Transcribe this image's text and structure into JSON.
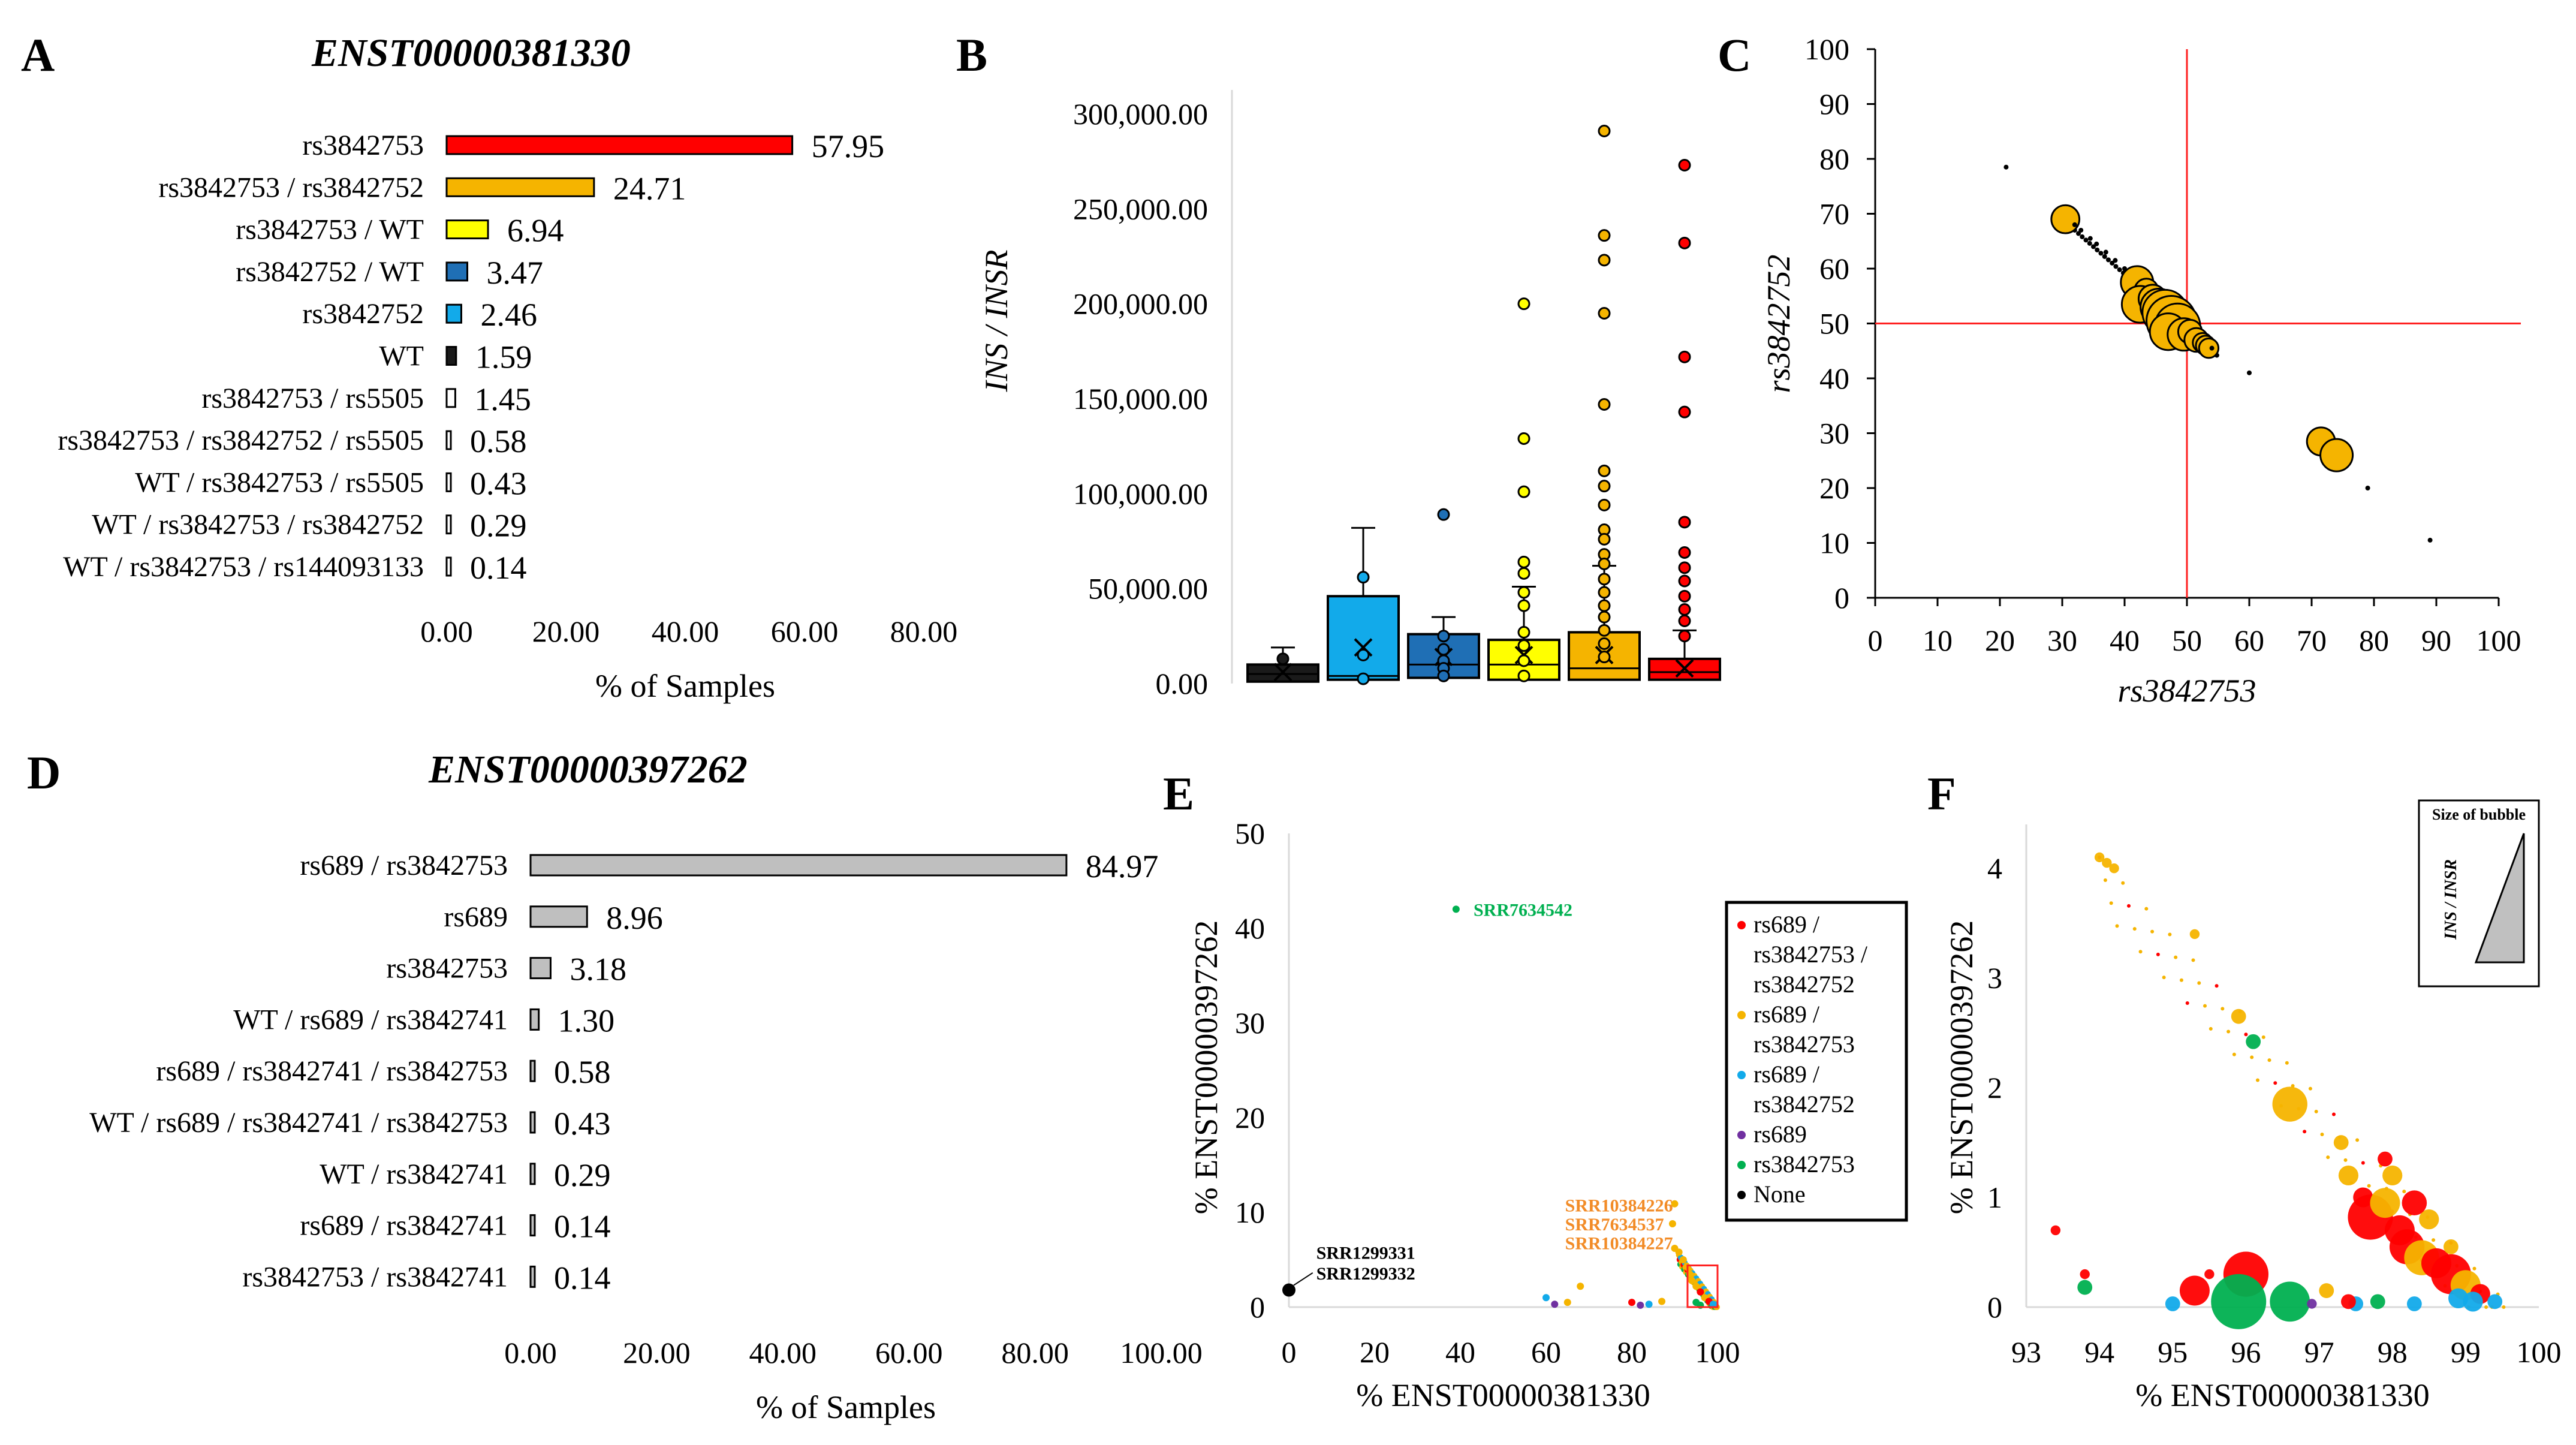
{
  "panels": {
    "A": {
      "label": "A",
      "title": "ENST00000381330"
    },
    "B": {
      "label": "B"
    },
    "C": {
      "label": "C"
    },
    "D": {
      "label": "D",
      "title": "ENST00000397262"
    },
    "E": {
      "label": "E"
    },
    "F": {
      "label": "F"
    }
  },
  "chart_data": [
    {
      "panel": "A",
      "type": "bar",
      "orientation": "horizontal",
      "title": "ENST00000381330",
      "xlabel": "% of Samples",
      "xlim": [
        0,
        80
      ],
      "xticks": [
        "0.00",
        "20.00",
        "40.00",
        "60.00",
        "80.00"
      ],
      "categories": [
        "rs3842753",
        "rs3842753 / rs3842752",
        "rs3842753 / WT",
        "rs3842752 / WT",
        "rs3842752",
        "WT",
        "rs3842753 / rs5505",
        "rs3842753 / rs3842752 / rs5505",
        "WT / rs3842753 / rs5505",
        "WT / rs3842753 / rs3842752",
        "WT / rs3842753 / rs144093133"
      ],
      "values": [
        57.95,
        24.71,
        6.94,
        3.47,
        2.46,
        1.59,
        1.45,
        0.58,
        0.43,
        0.29,
        0.14
      ],
      "labels": [
        "57.95",
        "24.71",
        "6.94",
        "3.47",
        "2.46",
        "1.59",
        "1.45",
        "0.58",
        "0.43",
        "0.29",
        "0.14"
      ],
      "colors": [
        "#ff0000",
        "#f5b400",
        "#ffff00",
        "#1f6fb5",
        "#12aaea",
        "#1a1a1a",
        "#ffffff",
        "#ffffff",
        "#ffffff",
        "#ffffff",
        "#ffffff"
      ]
    },
    {
      "panel": "B",
      "type": "box",
      "ylabel": "INS / INSR",
      "ylim": [
        0,
        300000
      ],
      "yticks": [
        "0.00",
        "50,000.00",
        "100,000.00",
        "150,000.00",
        "200,000.00",
        "250,000.00",
        "300,000.00"
      ],
      "boxes": [
        {
          "color": "#1a1a1a",
          "whisker_low": 0,
          "q1": 1000,
          "median": 5000,
          "q3": 10000,
          "whisker_high": 19000,
          "mean": 6000,
          "outliers": [
            13000
          ]
        },
        {
          "color": "#12aaea",
          "whisker_low": 0,
          "q1": 2000,
          "median": 4000,
          "q3": 46000,
          "whisker_high": 82000,
          "mean": 19000,
          "outliers": [
            56000,
            15000,
            2500
          ]
        },
        {
          "color": "#1f6fb5",
          "whisker_low": 0,
          "q1": 3000,
          "median": 10000,
          "q3": 26000,
          "whisker_high": 35000,
          "mean": 14000,
          "outliers": [
            89000,
            25000,
            18000,
            12000,
            8000,
            4000
          ]
        },
        {
          "color": "#ffff00",
          "whisker_low": 0,
          "q1": 2000,
          "median": 10000,
          "q3": 23000,
          "whisker_high": 51000,
          "mean": 15000,
          "outliers": [
            200000,
            129000,
            101000,
            64000,
            58000,
            48000,
            41000,
            27000,
            20000,
            12000,
            4000
          ]
        },
        {
          "color": "#f5b400",
          "whisker_low": 0,
          "q1": 2000,
          "median": 8000,
          "q3": 27000,
          "whisker_high": 62000,
          "mean": 15000,
          "outliers": [
            291000,
            236000,
            223000,
            195000,
            147000,
            112000,
            104000,
            94000,
            81000,
            76000,
            68000,
            63000,
            55000,
            48000,
            41000,
            35000,
            28000,
            21000,
            14000
          ]
        },
        {
          "color": "#ff0000",
          "whisker_low": 0,
          "q1": 2000,
          "median": 6000,
          "q3": 13000,
          "whisker_high": 28000,
          "mean": 8000,
          "outliers": [
            273000,
            232000,
            172000,
            143000,
            85000,
            69000,
            61000,
            54000,
            46000,
            39000,
            33000,
            25000
          ]
        }
      ]
    },
    {
      "panel": "C",
      "type": "scatter",
      "xlabel": "rs3842753",
      "ylabel": "rs3842752",
      "xlim": [
        0,
        100
      ],
      "ylim": [
        0,
        100
      ],
      "xticks": [
        "0",
        "10",
        "20",
        "30",
        "40",
        "50",
        "60",
        "70",
        "80",
        "90",
        "100"
      ],
      "yticks": [
        "0",
        "10",
        "20",
        "30",
        "40",
        "50",
        "60",
        "70",
        "80",
        "90",
        "100"
      ],
      "reference_lines": {
        "x": 50,
        "y": 50,
        "color": "#ff2020"
      },
      "points": [
        {
          "x": 21,
          "y": 78.5,
          "size": 1
        },
        {
          "x": 30.5,
          "y": 69,
          "size": 4
        },
        {
          "x": 32,
          "y": 68,
          "size": 1
        },
        {
          "x": 33,
          "y": 67,
          "size": 1
        },
        {
          "x": 34.5,
          "y": 65.5,
          "size": 1
        },
        {
          "x": 35.5,
          "y": 64.5,
          "size": 1
        },
        {
          "x": 37,
          "y": 63,
          "size": 1
        },
        {
          "x": 38.5,
          "y": 61.5,
          "size": 1
        },
        {
          "x": 40,
          "y": 60,
          "size": 1
        },
        {
          "x": 41,
          "y": 59,
          "size": 1
        },
        {
          "x": 42,
          "y": 57.5,
          "size": 5
        },
        {
          "x": 43.5,
          "y": 56,
          "size": 3
        },
        {
          "x": 42.5,
          "y": 53.5,
          "size": 6
        },
        {
          "x": 44.5,
          "y": 54.5,
          "size": 4
        },
        {
          "x": 45.5,
          "y": 53,
          "size": 6
        },
        {
          "x": 46.5,
          "y": 52,
          "size": 8
        },
        {
          "x": 47.5,
          "y": 50.5,
          "size": 9
        },
        {
          "x": 48.5,
          "y": 49.5,
          "size": 8
        },
        {
          "x": 47,
          "y": 48.5,
          "size": 6
        },
        {
          "x": 49.5,
          "y": 48,
          "size": 5
        },
        {
          "x": 50.5,
          "y": 48.5,
          "size": 3
        },
        {
          "x": 51.5,
          "y": 47,
          "size": 3
        },
        {
          "x": 52.5,
          "y": 46.5,
          "size": 2
        },
        {
          "x": 53,
          "y": 46,
          "size": 2
        },
        {
          "x": 53.5,
          "y": 45.5,
          "size": 2
        },
        {
          "x": 54,
          "y": 45.5,
          "size": 1
        },
        {
          "x": 60,
          "y": 41,
          "size": 1
        },
        {
          "x": 71.5,
          "y": 28.5,
          "size": 4
        },
        {
          "x": 74,
          "y": 26,
          "size": 5
        },
        {
          "x": 79,
          "y": 20,
          "size": 1
        },
        {
          "x": 89,
          "y": 10.5,
          "size": 1
        }
      ]
    },
    {
      "panel": "D",
      "type": "bar",
      "orientation": "horizontal",
      "title": "ENST00000397262",
      "xlabel": "% of Samples",
      "xlim": [
        0,
        100
      ],
      "xticks": [
        "0.00",
        "20.00",
        "40.00",
        "60.00",
        "80.00",
        "100.00"
      ],
      "categories": [
        "rs689 / rs3842753",
        "rs689",
        "rs3842753",
        "WT / rs689 / rs3842741",
        "rs689 / rs3842741 / rs3842753",
        "WT / rs689 / rs3842741 / rs3842753",
        "WT / rs3842741",
        "rs689 / rs3842741",
        "rs3842753 / rs3842741"
      ],
      "values": [
        84.97,
        8.96,
        3.18,
        1.3,
        0.58,
        0.43,
        0.29,
        0.14,
        0.14
      ],
      "labels": [
        "84.97",
        "8.96",
        "3.18",
        "1.30",
        "0.58",
        "0.43",
        "0.29",
        "0.14",
        "0.14"
      ],
      "colors": [
        "#bfbfbf",
        "#bfbfbf",
        "#bfbfbf",
        "#bfbfbf",
        "#bfbfbf",
        "#bfbfbf",
        "#bfbfbf",
        "#bfbfbf",
        "#bfbfbf"
      ]
    },
    {
      "panel": "E",
      "type": "scatter",
      "xlabel": "% ENST00000381330",
      "ylabel": "% ENST00000397262",
      "xlim": [
        0,
        100
      ],
      "ylim": [
        0,
        50
      ],
      "xticks": [
        "0",
        "20",
        "40",
        "60",
        "80",
        "100"
      ],
      "yticks": [
        "0",
        "10",
        "20",
        "30",
        "40",
        "50"
      ],
      "legend": [
        {
          "label_lines": [
            "rs689 /",
            "rs3842753 /",
            "rs3842752"
          ],
          "color": "#ff0000"
        },
        {
          "label_lines": [
            "rs689 /",
            "rs3842753"
          ],
          "color": "#f5b400"
        },
        {
          "label_lines": [
            "rs689 /",
            "rs3842752"
          ],
          "color": "#12aaea"
        },
        {
          "label_lines": [
            "rs689"
          ],
          "color": "#7030a0"
        },
        {
          "label_lines": [
            "rs3842753"
          ],
          "color": "#00b050"
        },
        {
          "label_lines": [
            "None"
          ],
          "color": "#000000"
        }
      ],
      "annotations": [
        {
          "text": "SRR7634542",
          "x": 40,
          "y": 42,
          "color": "#00b050"
        },
        {
          "text": "SRR10384226",
          "x": 91,
          "y": 10.8,
          "color": "#f28c28"
        },
        {
          "text": "SRR7634537",
          "x": 91,
          "y": 8.8,
          "color": "#f28c28"
        },
        {
          "text": "SRR10384227",
          "x": 91,
          "y": 6.8,
          "color": "#f28c28"
        },
        {
          "text": "SRR1299331",
          "x": 5,
          "y": 5.8,
          "color": "#000000"
        },
        {
          "text": "SRR1299332",
          "x": 5,
          "y": 3.6,
          "color": "#000000"
        }
      ],
      "points": [
        {
          "x": 0,
          "y": 1.8,
          "color": "#000000",
          "r": 2
        },
        {
          "x": 39,
          "y": 42,
          "color": "#00b050",
          "r": 1
        },
        {
          "x": 90,
          "y": 10.9,
          "color": "#f5b400",
          "r": 1
        },
        {
          "x": 89.5,
          "y": 8.8,
          "color": "#f5b400",
          "r": 1
        },
        {
          "x": 90,
          "y": 6.2,
          "color": "#f5b400",
          "r": 1
        },
        {
          "x": 91,
          "y": 5.8,
          "color": "#f5b400",
          "r": 1
        },
        {
          "x": 92,
          "y": 5,
          "color": "#f5b400",
          "r": 1
        },
        {
          "x": 93,
          "y": 4.2,
          "color": "#f5b400",
          "r": 1
        },
        {
          "x": 93.5,
          "y": 3.5,
          "color": "#f5b400",
          "r": 1
        },
        {
          "x": 94,
          "y": 2.8,
          "color": "#f5b400",
          "r": 1
        },
        {
          "x": 95,
          "y": 2.2,
          "color": "#f5b400",
          "r": 1
        },
        {
          "x": 96,
          "y": 1.6,
          "color": "#ff0000",
          "r": 1
        },
        {
          "x": 97,
          "y": 1,
          "color": "#f5b400",
          "r": 1
        },
        {
          "x": 98,
          "y": 0.6,
          "color": "#ff0000",
          "r": 1
        },
        {
          "x": 99,
          "y": 0.3,
          "color": "#12aaea",
          "r": 1
        },
        {
          "x": 95,
          "y": 0.5,
          "color": "#00b050",
          "r": 1
        },
        {
          "x": 96,
          "y": 0.2,
          "color": "#00b050",
          "r": 1
        },
        {
          "x": 68,
          "y": 2.2,
          "color": "#f5b400",
          "r": 1
        },
        {
          "x": 60,
          "y": 1,
          "color": "#12aaea",
          "r": 1
        },
        {
          "x": 62,
          "y": 0.3,
          "color": "#7030a0",
          "r": 1
        },
        {
          "x": 65,
          "y": 0.5,
          "color": "#f5b400",
          "r": 1
        },
        {
          "x": 80,
          "y": 0.5,
          "color": "#ff0000",
          "r": 1
        },
        {
          "x": 84,
          "y": 0.3,
          "color": "#12aaea",
          "r": 1
        },
        {
          "x": 87,
          "y": 0.6,
          "color": "#f5b400",
          "r": 1
        },
        {
          "x": 82,
          "y": 0.2,
          "color": "#7030a0",
          "r": 1
        }
      ],
      "zoom_box": {
        "x0": 93,
        "x1": 100,
        "y0": 0,
        "y1": 4.4,
        "color": "#ff2020"
      }
    },
    {
      "panel": "F",
      "type": "bubble",
      "xlabel": "% ENST00000381330",
      "ylabel": "% ENST00000397262",
      "xlim": [
        93,
        100
      ],
      "ylim": [
        0,
        4.4
      ],
      "xticks": [
        "93",
        "94",
        "95",
        "96",
        "97",
        "98",
        "99",
        "100"
      ],
      "yticks": [
        "0",
        "1",
        "2",
        "3",
        "4"
      ],
      "size_legend": {
        "title": "Size of bubble",
        "label": "INS / INSR"
      },
      "points": [
        {
          "x": 94,
          "y": 4.1,
          "color": "#f5b400",
          "size": 1
        },
        {
          "x": 94.1,
          "y": 4.05,
          "color": "#f5b400",
          "size": 1
        },
        {
          "x": 94.2,
          "y": 4.0,
          "color": "#f5b400",
          "size": 1
        },
        {
          "x": 95.3,
          "y": 3.4,
          "color": "#f5b400",
          "size": 1
        },
        {
          "x": 95.9,
          "y": 2.65,
          "color": "#f5b400",
          "size": 2
        },
        {
          "x": 96.1,
          "y": 2.42,
          "color": "#00b050",
          "size": 2
        },
        {
          "x": 96.6,
          "y": 1.85,
          "color": "#f5b400",
          "size": 6
        },
        {
          "x": 97.3,
          "y": 1.5,
          "color": "#f5b400",
          "size": 2
        },
        {
          "x": 97.4,
          "y": 1.2,
          "color": "#f5b400",
          "size": 3
        },
        {
          "x": 97.6,
          "y": 1.0,
          "color": "#ff0000",
          "size": 3
        },
        {
          "x": 97.7,
          "y": 0.82,
          "color": "#ff0000",
          "size": 8
        },
        {
          "x": 97.9,
          "y": 0.95,
          "color": "#f5b400",
          "size": 5
        },
        {
          "x": 98.1,
          "y": 0.7,
          "color": "#ff0000",
          "size": 5
        },
        {
          "x": 98.2,
          "y": 0.55,
          "color": "#ff0000",
          "size": 6
        },
        {
          "x": 98.4,
          "y": 0.45,
          "color": "#f5b400",
          "size": 6
        },
        {
          "x": 98.6,
          "y": 0.4,
          "color": "#ff0000",
          "size": 5
        },
        {
          "x": 98.8,
          "y": 0.3,
          "color": "#ff0000",
          "size": 7
        },
        {
          "x": 99.0,
          "y": 0.2,
          "color": "#f5b400",
          "size": 5
        },
        {
          "x": 99.2,
          "y": 0.12,
          "color": "#ff0000",
          "size": 3
        },
        {
          "x": 99.4,
          "y": 0.05,
          "color": "#12aaea",
          "size": 2
        },
        {
          "x": 98.9,
          "y": 0.08,
          "color": "#12aaea",
          "size": 3
        },
        {
          "x": 99.1,
          "y": 0.05,
          "color": "#12aaea",
          "size": 3
        },
        {
          "x": 97.9,
          "y": 1.35,
          "color": "#ff0000",
          "size": 2
        },
        {
          "x": 98.0,
          "y": 1.2,
          "color": "#f5b400",
          "size": 3
        },
        {
          "x": 98.5,
          "y": 0.8,
          "color": "#f5b400",
          "size": 3
        },
        {
          "x": 98.3,
          "y": 0.95,
          "color": "#ff0000",
          "size": 4
        },
        {
          "x": 96.0,
          "y": 0.3,
          "color": "#ff0000",
          "size": 8
        },
        {
          "x": 95.3,
          "y": 0.15,
          "color": "#ff0000",
          "size": 5
        },
        {
          "x": 95.9,
          "y": 0.05,
          "color": "#00b050",
          "size": 10
        },
        {
          "x": 96.6,
          "y": 0.05,
          "color": "#00b050",
          "size": 7
        },
        {
          "x": 95.0,
          "y": 0.03,
          "color": "#12aaea",
          "size": 2
        },
        {
          "x": 97.5,
          "y": 0.03,
          "color": "#12aaea",
          "size": 2
        },
        {
          "x": 93.8,
          "y": 0.18,
          "color": "#00b050",
          "size": 2
        },
        {
          "x": 93.8,
          "y": 0.3,
          "color": "#ff0000",
          "size": 1
        },
        {
          "x": 93.4,
          "y": 0.7,
          "color": "#ff0000",
          "size": 1
        },
        {
          "x": 97.4,
          "y": 0.05,
          "color": "#ff0000",
          "size": 2
        },
        {
          "x": 96.9,
          "y": 0.03,
          "color": "#7030a0",
          "size": 1
        },
        {
          "x": 97.8,
          "y": 0.05,
          "color": "#00b050",
          "size": 2
        },
        {
          "x": 98.3,
          "y": 0.03,
          "color": "#12aaea",
          "size": 2
        },
        {
          "x": 95.5,
          "y": 0.3,
          "color": "#ff0000",
          "size": 1
        },
        {
          "x": 97.1,
          "y": 0.15,
          "color": "#f5b400",
          "size": 2
        },
        {
          "x": 98.8,
          "y": 0.55,
          "color": "#f5b400",
          "size": 2
        }
      ]
    }
  ]
}
